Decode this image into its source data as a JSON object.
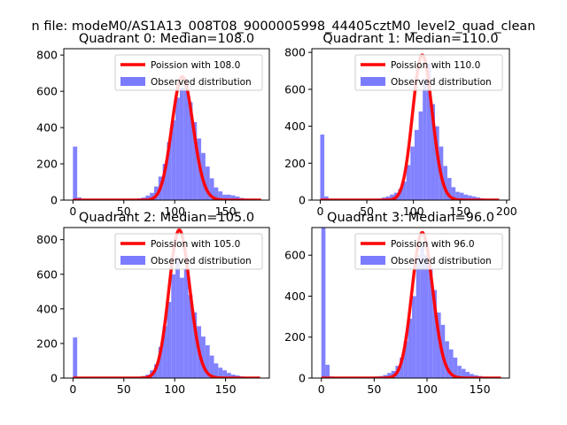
{
  "figure": {
    "suptitle": "n file: modeM0/AS1A13_008T08_9000005998_44405cztM0_level2_quad_clean"
  },
  "colors": {
    "hist": "#7b7bff",
    "poisson": "#ff0000",
    "axes": "#000000",
    "background": "#ffffff"
  },
  "chart_data": [
    {
      "type": "bar",
      "title": "Quadrant 0: Median=108.0",
      "xlim": [
        -9,
        193
      ],
      "ylim": [
        0,
        835
      ],
      "xticks": [
        0,
        50,
        100,
        150
      ],
      "yticks": [
        0,
        200,
        400,
        600,
        800
      ],
      "grid": false,
      "legend_position": "top-right",
      "legend": [
        "Poission with 108.0",
        "Observed distribution"
      ],
      "bin_width": 4.2,
      "hist": [
        [
          0,
          295
        ],
        [
          4.2,
          15
        ],
        [
          8.4,
          5
        ],
        [
          12.6,
          4
        ],
        [
          16.8,
          3
        ],
        [
          21,
          3
        ],
        [
          25.2,
          2
        ],
        [
          29.4,
          3
        ],
        [
          33.6,
          2
        ],
        [
          37.8,
          3
        ],
        [
          42,
          3
        ],
        [
          46.2,
          3
        ],
        [
          50.4,
          4
        ],
        [
          54.6,
          5
        ],
        [
          58.8,
          6
        ],
        [
          63,
          10
        ],
        [
          67.2,
          14
        ],
        [
          71.4,
          25
        ],
        [
          75.6,
          40
        ],
        [
          79.8,
          75
        ],
        [
          84,
          130
        ],
        [
          88.2,
          200
        ],
        [
          92.4,
          320
        ],
        [
          96.6,
          440
        ],
        [
          100.8,
          565
        ],
        [
          105,
          620
        ],
        [
          109.2,
          640
        ],
        [
          113.4,
          540
        ],
        [
          117.6,
          430
        ],
        [
          121.8,
          340
        ],
        [
          126,
          260
        ],
        [
          130.2,
          185
        ],
        [
          134.4,
          120
        ],
        [
          138.6,
          70
        ],
        [
          142.8,
          48
        ],
        [
          147,
          30
        ],
        [
          151.2,
          30
        ],
        [
          155.4,
          26
        ],
        [
          159.6,
          20
        ],
        [
          163.8,
          12
        ],
        [
          168,
          8
        ],
        [
          172.2,
          5
        ],
        [
          176.4,
          4
        ],
        [
          180.6,
          3
        ]
      ],
      "poisson": {
        "lambda": 108.0,
        "x_range": [
          0,
          185
        ],
        "amplitude": 680
      }
    },
    {
      "type": "bar",
      "title": "Quadrant 1: Median=110.0",
      "xlim": [
        -9,
        203
      ],
      "ylim": [
        0,
        820
      ],
      "xticks": [
        0,
        50,
        100,
        150,
        200
      ],
      "yticks": [
        0,
        200,
        400,
        600,
        800
      ],
      "grid": false,
      "legend_position": "top-right",
      "legend": [
        "Poission with 110.0",
        "Observed distribution"
      ],
      "bin_width": 4.4,
      "hist": [
        [
          0,
          355
        ],
        [
          4.4,
          20
        ],
        [
          8.8,
          6
        ],
        [
          13.2,
          4
        ],
        [
          17.6,
          3
        ],
        [
          22,
          3
        ],
        [
          26.4,
          2
        ],
        [
          30.8,
          3
        ],
        [
          35.2,
          2
        ],
        [
          39.6,
          3
        ],
        [
          44,
          3
        ],
        [
          48.4,
          4
        ],
        [
          52.8,
          5
        ],
        [
          57.2,
          6
        ],
        [
          61.6,
          8
        ],
        [
          66,
          14
        ],
        [
          70.4,
          20
        ],
        [
          74.8,
          30
        ],
        [
          79.2,
          40
        ],
        [
          83.6,
          60
        ],
        [
          88,
          100
        ],
        [
          92.4,
          190
        ],
        [
          96.8,
          290
        ],
        [
          101.2,
          380
        ],
        [
          105.6,
          480
        ],
        [
          110,
          660
        ],
        [
          114.4,
          740
        ],
        [
          118.8,
          520
        ],
        [
          123.2,
          400
        ],
        [
          127.6,
          290
        ],
        [
          132,
          185
        ],
        [
          136.4,
          120
        ],
        [
          140.8,
          70
        ],
        [
          145.2,
          45
        ],
        [
          149.6,
          40
        ],
        [
          154,
          30
        ],
        [
          158.4,
          25
        ],
        [
          162.8,
          20
        ],
        [
          167.2,
          15
        ],
        [
          171.6,
          10
        ],
        [
          176,
          6
        ],
        [
          180.4,
          4
        ],
        [
          184.8,
          3
        ]
      ],
      "poisson": {
        "lambda": 110.0,
        "x_range": [
          0,
          192
        ],
        "amplitude": 785
      }
    },
    {
      "type": "bar",
      "title": "Quadrant 2: Median=105.0",
      "xlim": [
        -9,
        193
      ],
      "ylim": [
        0,
        870
      ],
      "xticks": [
        0,
        50,
        100,
        150
      ],
      "yticks": [
        0,
        200,
        400,
        600,
        800
      ],
      "grid": false,
      "legend_position": "top-right",
      "legend": [
        "Poission with 105.0",
        "Observed distribution"
      ],
      "bin_width": 4.2,
      "hist": [
        [
          0,
          235
        ],
        [
          4.2,
          6
        ],
        [
          8.4,
          4
        ],
        [
          12.6,
          3
        ],
        [
          16.8,
          3
        ],
        [
          21,
          3
        ],
        [
          25.2,
          2
        ],
        [
          29.4,
          2
        ],
        [
          33.6,
          2
        ],
        [
          37.8,
          3
        ],
        [
          42,
          3
        ],
        [
          46.2,
          3
        ],
        [
          50.4,
          4
        ],
        [
          54.6,
          5
        ],
        [
          58.8,
          6
        ],
        [
          63,
          8
        ],
        [
          67.2,
          12
        ],
        [
          71.4,
          20
        ],
        [
          75.6,
          45
        ],
        [
          79.8,
          80
        ],
        [
          84,
          180
        ],
        [
          88.2,
          300
        ],
        [
          92.4,
          440
        ],
        [
          96.6,
          600
        ],
        [
          100.8,
          700
        ],
        [
          105,
          580
        ],
        [
          109.2,
          630
        ],
        [
          113.4,
          480
        ],
        [
          117.6,
          380
        ],
        [
          121.8,
          300
        ],
        [
          126,
          240
        ],
        [
          130.2,
          190
        ],
        [
          134.4,
          130
        ],
        [
          138.6,
          85
        ],
        [
          142.8,
          60
        ],
        [
          147,
          45
        ],
        [
          151.2,
          30
        ],
        [
          155.4,
          20
        ],
        [
          159.6,
          15
        ],
        [
          163.8,
          10
        ],
        [
          168,
          6
        ],
        [
          172.2,
          4
        ],
        [
          176.4,
          3
        ]
      ],
      "poisson": {
        "lambda": 105.0,
        "x_range": [
          0,
          184
        ],
        "amplitude": 855
      }
    },
    {
      "type": "bar",
      "title": "Quadrant 3: Median=96.0",
      "xlim": [
        -9,
        178
      ],
      "ylim": [
        0,
        735
      ],
      "xticks": [
        0,
        50,
        100,
        150
      ],
      "yticks": [
        0,
        200,
        400,
        600
      ],
      "grid": false,
      "legend_position": "top-right",
      "legend": [
        "Poission with 96.0",
        "Observed distribution"
      ],
      "bin_width": 3.9,
      "hist": [
        [
          0,
          800
        ],
        [
          3.9,
          65
        ],
        [
          7.8,
          8
        ],
        [
          11.7,
          4
        ],
        [
          15.6,
          3
        ],
        [
          19.5,
          3
        ],
        [
          23.4,
          2
        ],
        [
          27.3,
          2
        ],
        [
          31.2,
          3
        ],
        [
          35.1,
          3
        ],
        [
          39,
          4
        ],
        [
          42.9,
          5
        ],
        [
          46.8,
          6
        ],
        [
          50.7,
          8
        ],
        [
          54.6,
          10
        ],
        [
          58.5,
          15
        ],
        [
          62.4,
          25
        ],
        [
          66.3,
          35
        ],
        [
          70.2,
          60
        ],
        [
          74.1,
          100
        ],
        [
          78,
          180
        ],
        [
          81.9,
          290
        ],
        [
          85.8,
          400
        ],
        [
          89.7,
          600
        ],
        [
          93.6,
          640
        ],
        [
          97.5,
          600
        ],
        [
          101.4,
          530
        ],
        [
          105.3,
          430
        ],
        [
          109.2,
          320
        ],
        [
          113.1,
          260
        ],
        [
          117,
          180
        ],
        [
          120.9,
          140
        ],
        [
          124.8,
          100
        ],
        [
          128.7,
          60
        ],
        [
          132.6,
          45
        ],
        [
          136.5,
          30
        ],
        [
          140.4,
          20
        ],
        [
          144.3,
          14
        ],
        [
          148.2,
          10
        ],
        [
          152.1,
          7
        ],
        [
          156,
          5
        ],
        [
          159.9,
          4
        ],
        [
          163.8,
          3
        ]
      ],
      "poisson": {
        "lambda": 96.0,
        "x_range": [
          0,
          170
        ],
        "amplitude": 710
      }
    }
  ]
}
